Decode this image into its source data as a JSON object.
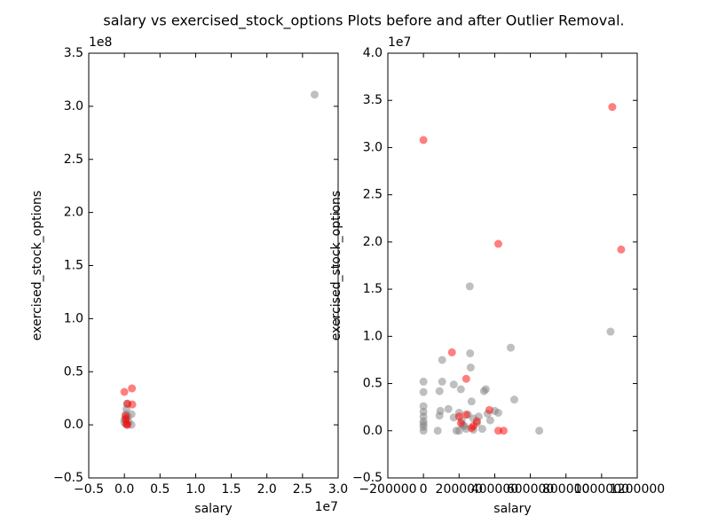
{
  "title": "salary vs exercised_stock_options Plots before and after Outlier Removal.",
  "chart_data": [
    {
      "type": "scatter",
      "xlabel": "salary",
      "ylabel": "exercised_stock_options",
      "x_offset_label": "1e7",
      "y_offset_label": "1e8",
      "xlim": [
        -0.5,
        3.0
      ],
      "ylim": [
        -0.5,
        3.5
      ],
      "xticks": [
        {
          "value": -0.5,
          "label": "−0.5"
        },
        {
          "value": 0,
          "label": "0.0"
        },
        0.5,
        {
          "value": 1,
          "label": "1.0"
        },
        1.5,
        {
          "value": 2,
          "label": "2.0"
        },
        2.5,
        {
          "value": 3,
          "label": "3.0"
        }
      ],
      "yticks": [
        {
          "value": -0.5,
          "label": "−0.5"
        },
        {
          "value": 0,
          "label": "0.0"
        },
        0.5,
        {
          "value": 1,
          "label": "1.0"
        },
        1.5,
        {
          "value": 2,
          "label": "2.0"
        },
        2.5,
        {
          "value": 3,
          "label": "3.0"
        },
        3.5
      ],
      "series": [
        {
          "color": "#808080",
          "x": [
            2.67,
            0,
            0,
            0.02,
            0.03,
            0.05,
            0.1,
            0.06,
            0.1,
            0.03,
            0.04,
            0.02
          ],
          "values": [
            3.11,
            0.05,
            0.02,
            0.1,
            0.15,
            0.08,
            0.1,
            0.03,
            0.0,
            0.0,
            0.2,
            0.04
          ]
        },
        {
          "color": "#ff0000",
          "x": [
            0,
            0.106,
            0.111,
            0.042,
            0.016,
            0.024,
            0.045,
            0.03
          ],
          "values": [
            0.31,
            0.343,
            0.192,
            0.198,
            0.083,
            0.055,
            0,
            0.01
          ]
        }
      ]
    },
    {
      "type": "scatter",
      "xlabel": "salary",
      "ylabel": "exercised_stock_options",
      "y_offset_label": "1e7",
      "xlim": [
        -200000,
        1200000
      ],
      "ylim": [
        -0.5,
        4.0
      ],
      "xticks": [
        {
          "value": -200000,
          "label": "−200000"
        },
        0,
        200000,
        400000,
        600000,
        800000,
        1000000,
        1200000
      ],
      "yticks": [
        {
          "value": -0.5,
          "label": "−0.5"
        },
        {
          "value": 0,
          "label": "0.0"
        },
        0.5,
        {
          "value": 1,
          "label": "1.0"
        },
        1.5,
        {
          "value": 2,
          "label": "2.0"
        },
        2.5,
        {
          "value": 3,
          "label": "3.0"
        },
        3.5,
        {
          "value": 4,
          "label": "4.0"
        }
      ],
      "series": [
        {
          "color": "#808080",
          "x": [
            0,
            0,
            0,
            0,
            0,
            0,
            0,
            0,
            0,
            80000,
            90000,
            95000,
            105000,
            105000,
            90000,
            140000,
            170000,
            170000,
            185000,
            200000,
            210000,
            215000,
            230000,
            240000,
            250000,
            260000,
            262000,
            265000,
            270000,
            280000,
            300000,
            310000,
            330000,
            340000,
            350000,
            360000,
            375000,
            400000,
            420000,
            490000,
            510000,
            650000,
            1050000,
            200000,
            220000,
            280000
          ],
          "values": [
            0.52,
            0.41,
            0.26,
            0.2,
            0.15,
            0.1,
            0.07,
            0.04,
            0,
            0,
            0.16,
            0.21,
            0.75,
            0.52,
            0.42,
            0.23,
            0.49,
            0.14,
            0,
            0.19,
            0.44,
            0.11,
            0.05,
            0.02,
            0.17,
            1.53,
            0.82,
            0.67,
            0.31,
            0.13,
            0.08,
            0.15,
            0.02,
            0.42,
            0.44,
            0.18,
            0.11,
            0.21,
            0.19,
            0.88,
            0.33,
            0,
            1.05,
            0,
            0.06,
            0.01
          ]
        },
        {
          "color": "#ff0000",
          "x": [
            0,
            1060000,
            1110000,
            420000,
            160000,
            240000,
            200000,
            210000,
            240000,
            270000,
            280000,
            370000,
            420000,
            450000,
            300000
          ],
          "values": [
            3.08,
            3.43,
            1.92,
            1.98,
            0.83,
            0.55,
            0.15,
            0.08,
            0.17,
            0.03,
            0.05,
            0.22,
            0,
            0,
            0.1
          ]
        }
      ]
    }
  ]
}
